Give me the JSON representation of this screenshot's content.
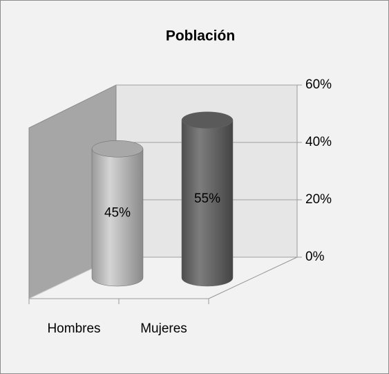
{
  "chart_data": {
    "type": "cylinder",
    "title": "Población",
    "categories": [
      "Hombres",
      "Mujeres"
    ],
    "values": [
      45,
      55
    ],
    "value_labels": [
      "45%",
      "55%"
    ],
    "colors": [
      "#bdbdbd",
      "#6f6f6f"
    ],
    "ylim": [
      0,
      60
    ],
    "yticks": [
      {
        "value": 0,
        "label": "0%"
      },
      {
        "value": 20,
        "label": "20%"
      },
      {
        "value": 40,
        "label": "40%"
      },
      {
        "value": 60,
        "label": "60%"
      }
    ],
    "grid": true
  }
}
